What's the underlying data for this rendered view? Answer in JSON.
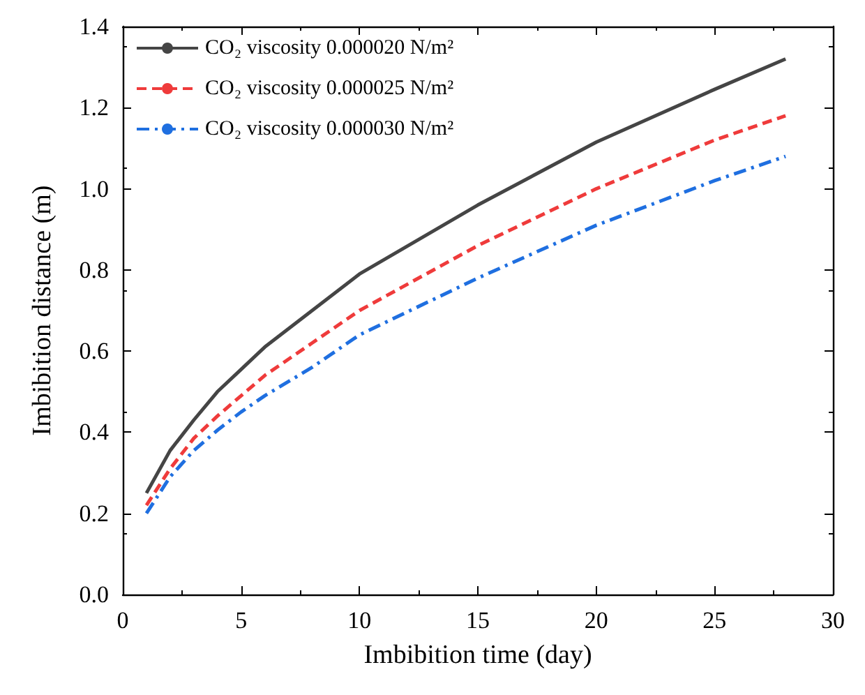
{
  "chart_data": {
    "type": "line",
    "xlabel": "Imbibition time (day)",
    "ylabel": "Imbibition distance (m)",
    "x": [
      1,
      2,
      3,
      4,
      5,
      6,
      8,
      10,
      15,
      20,
      25,
      28
    ],
    "series": [
      {
        "name": "CO₂ viscosity 0.000020 N/m²",
        "color": "#454545",
        "line_style": "solid",
        "values": [
          0.25,
          0.355,
          0.43,
          0.5,
          0.555,
          0.61,
          0.7,
          0.79,
          0.96,
          1.115,
          1.245,
          1.32
        ]
      },
      {
        "name": "CO₂ viscosity 0.000025 N/m²",
        "color": "#ef3b3b",
        "line_style": "dashed",
        "values": [
          0.22,
          0.31,
          0.385,
          0.44,
          0.49,
          0.54,
          0.62,
          0.7,
          0.86,
          1.0,
          1.12,
          1.18
        ]
      },
      {
        "name": "CO₂ viscosity 0.000030 N/m²",
        "color": "#1f6fe0",
        "line_style": "dashdot",
        "values": [
          0.2,
          0.29,
          0.355,
          0.405,
          0.45,
          0.49,
          0.56,
          0.64,
          0.78,
          0.91,
          1.02,
          1.08
        ]
      }
    ],
    "xlim": [
      0,
      30
    ],
    "xticks": [
      0,
      5,
      10,
      15,
      20,
      25,
      30
    ],
    "ylim": [
      0,
      1.4
    ],
    "yticks": [
      {
        "value": 0,
        "label": "0.0"
      },
      0.2,
      0.4,
      0.6,
      0.8,
      {
        "value": 1,
        "label": "1.0"
      },
      1.2,
      1.4
    ],
    "grid": false,
    "legend": "top left",
    "marker": "none"
  }
}
